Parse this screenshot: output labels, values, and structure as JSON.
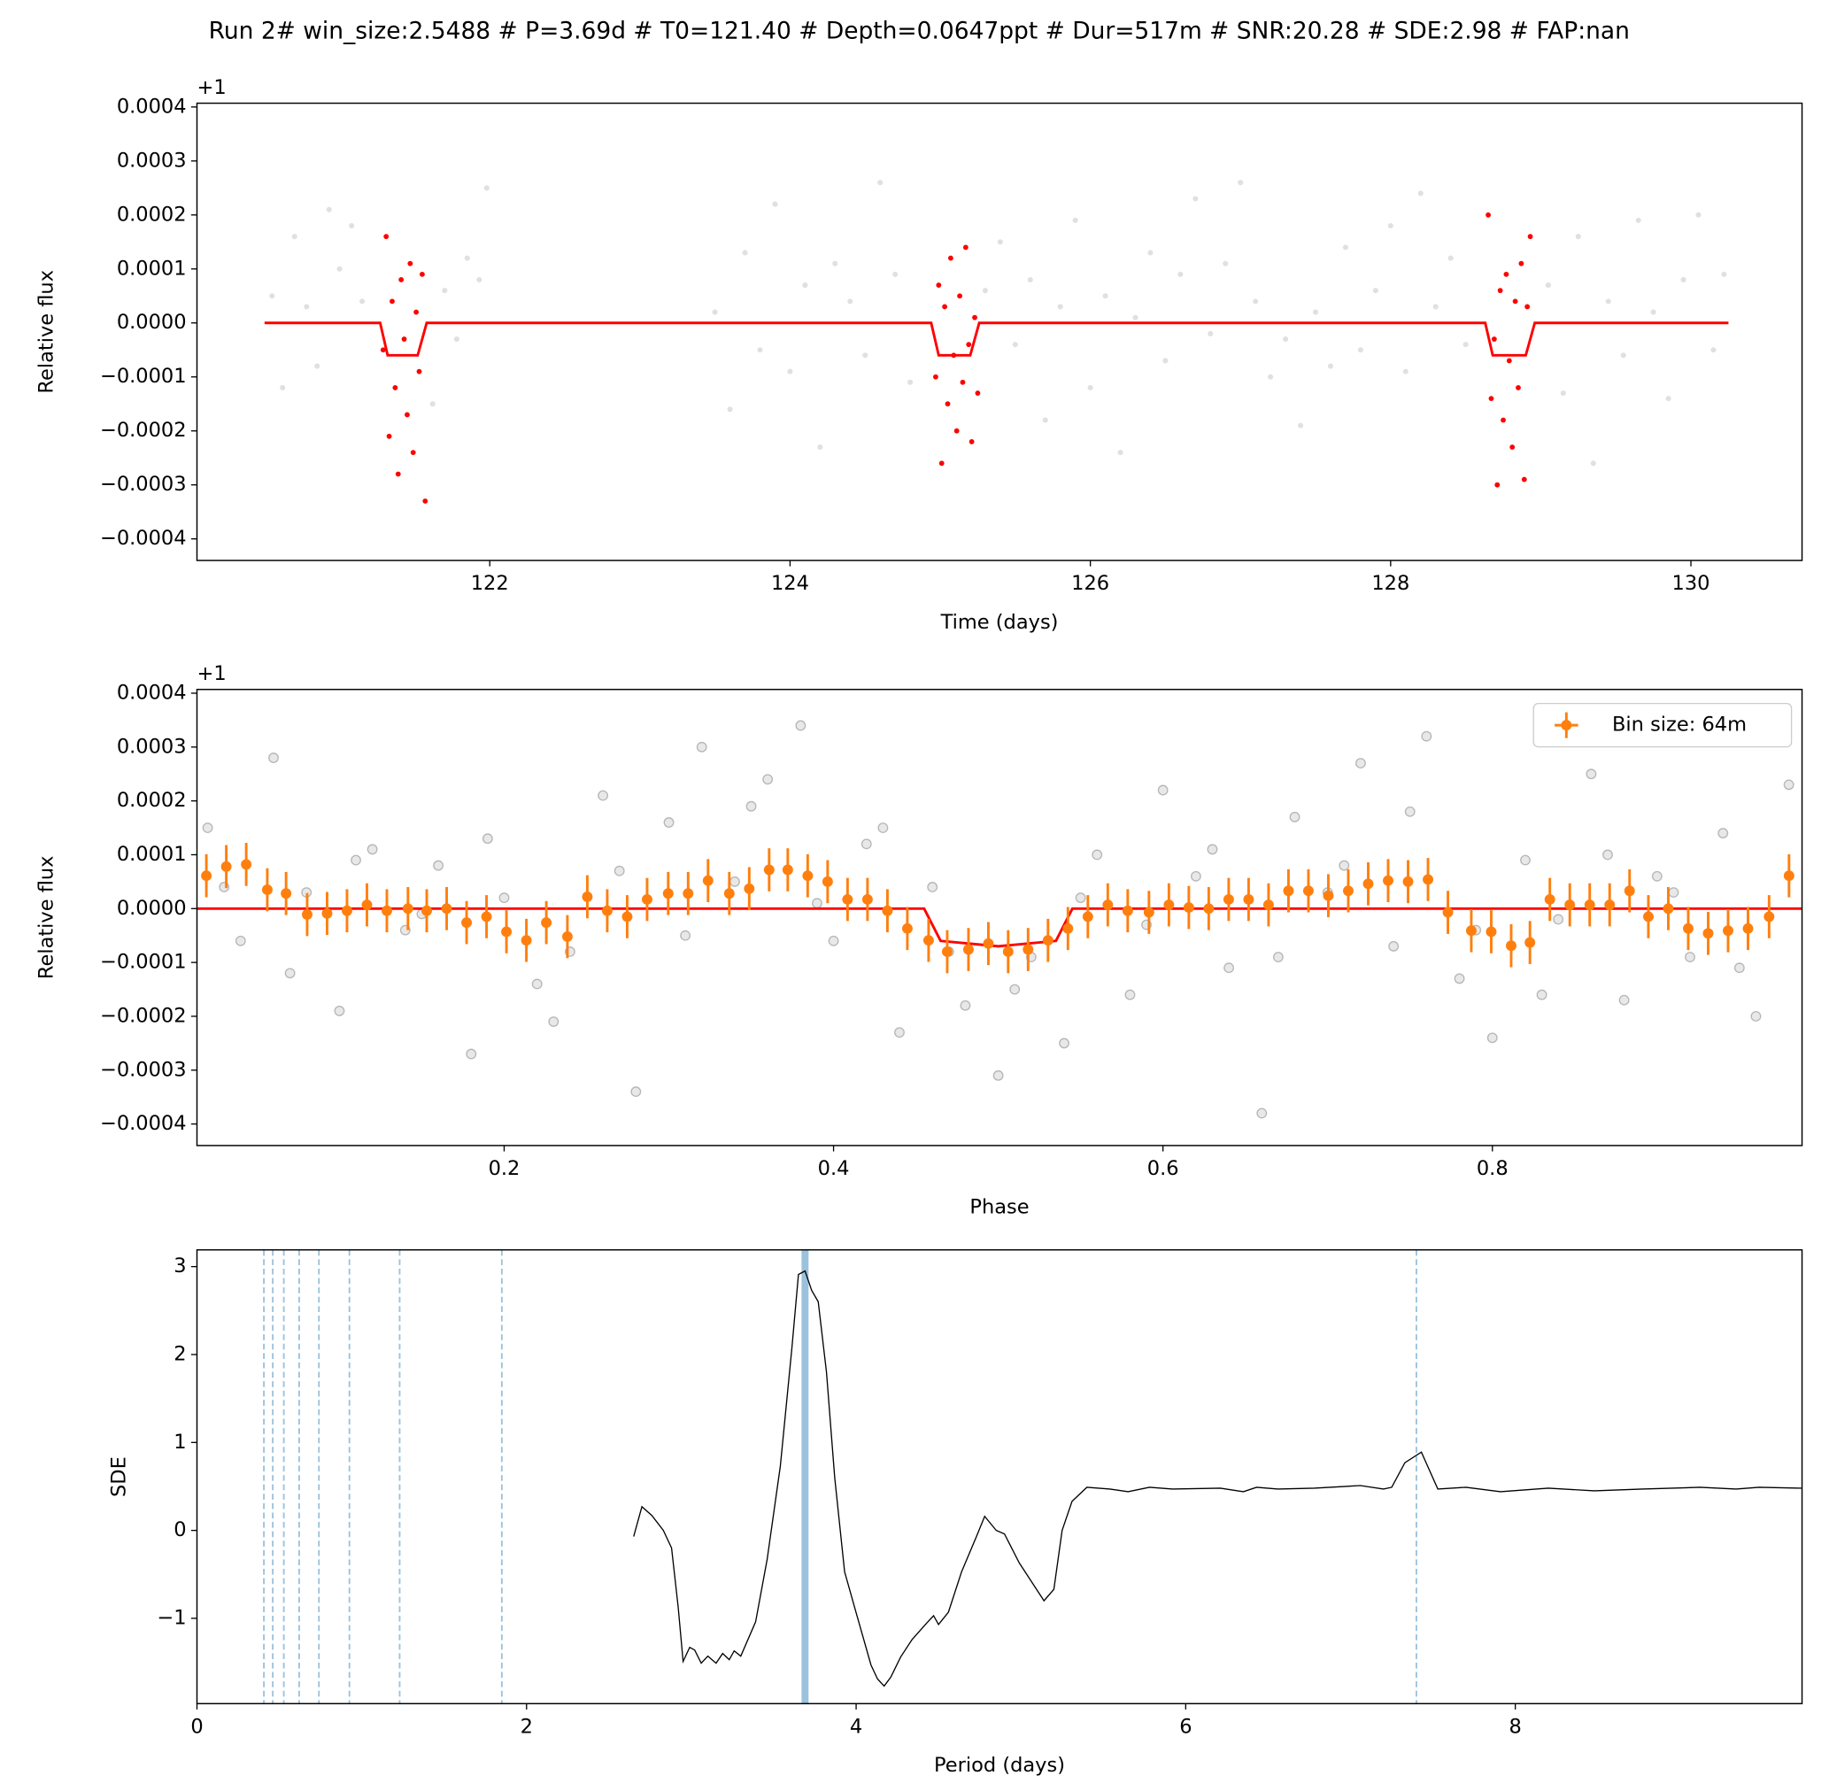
{
  "title": "Run 2# win_size:2.5488 # P=3.69d # T0=121.40 # Depth=0.0647ppt # Dur=517m # SNR:20.28 # SDE:2.98 # FAP:nan",
  "chart_data": [
    {
      "type": "scatter",
      "xlabel": "Time (days)",
      "ylabel": "Relative flux",
      "offset_label": "+1",
      "xlim": [
        120.05,
        130.74
      ],
      "ylim": [
        -0.00044,
        0.000407
      ],
      "xticks": [
        122,
        124,
        126,
        128,
        130
      ],
      "yticks": [
        {
          "value": -0.0004,
          "label": "−0.0004"
        },
        {
          "value": -0.0003,
          "label": "−0.0003"
        },
        {
          "value": -0.0002,
          "label": "−0.0002"
        },
        {
          "value": -0.0001,
          "label": "−0.0001"
        },
        {
          "value": 0,
          "label": "0.0000"
        },
        0.0001,
        0.0002,
        0.0003,
        0.0004
      ],
      "series": [
        {
          "kind": "points",
          "color": "#000000",
          "opacity": 0.12,
          "size": 2.3,
          "x": [
            120.55,
            120.62,
            120.7,
            120.78,
            120.85,
            120.93,
            121.0,
            121.08,
            121.15,
            121.62,
            121.7,
            121.78,
            121.85,
            121.93,
            121.98,
            123.5,
            123.6,
            123.7,
            123.8,
            123.9,
            124.0,
            124.1,
            124.2,
            124.3,
            124.4,
            124.5,
            124.6,
            124.7,
            124.8,
            125.3,
            125.4,
            125.5,
            125.6,
            125.7,
            125.8,
            125.9,
            126.0,
            126.1,
            126.2,
            126.3,
            126.4,
            126.5,
            126.6,
            126.7,
            126.8,
            126.9,
            127.0,
            127.1,
            127.2,
            127.3,
            127.4,
            127.5,
            127.6,
            127.7,
            127.8,
            127.9,
            128.0,
            128.1,
            128.2,
            128.3,
            128.4,
            128.5,
            129.05,
            129.15,
            129.25,
            129.35,
            129.45,
            129.55,
            129.65,
            129.75,
            129.85,
            129.95,
            130.05,
            130.15,
            130.22
          ],
          "values": [
            5e-05,
            -0.00012,
            0.00016,
            3e-05,
            -8e-05,
            0.00021,
            0.0001,
            0.00018,
            4e-05,
            -0.00015,
            6e-05,
            -3e-05,
            0.00012,
            8e-05,
            0.00025,
            2e-05,
            -0.00016,
            0.00013,
            -5e-05,
            0.00022,
            -9e-05,
            7e-05,
            -0.00023,
            0.00011,
            4e-05,
            -6e-05,
            0.00026,
            9e-05,
            -0.00011,
            6e-05,
            0.00015,
            -4e-05,
            8e-05,
            -0.00018,
            3e-05,
            0.00019,
            -0.00012,
            5e-05,
            -0.00024,
            1e-05,
            0.00013,
            -7e-05,
            9e-05,
            0.00023,
            -2e-05,
            0.00011,
            0.00026,
            4e-05,
            -0.0001,
            -3e-05,
            -0.00019,
            2e-05,
            -8e-05,
            0.00014,
            -5e-05,
            6e-05,
            0.00018,
            -9e-05,
            0.00024,
            3e-05,
            0.00012,
            -4e-05,
            7e-05,
            -0.00013,
            0.00016,
            -0.00026,
            4e-05,
            -6e-05,
            0.00019,
            2e-05,
            -0.00014,
            8e-05,
            0.0002,
            -5e-05,
            9e-05
          ]
        },
        {
          "kind": "points",
          "color": "#ff0000",
          "opacity": 1,
          "size": 2.2,
          "x": [
            121.29,
            121.31,
            121.33,
            121.35,
            121.37,
            121.39,
            121.41,
            121.43,
            121.45,
            121.47,
            121.49,
            121.51,
            121.53,
            121.55,
            121.57,
            124.97,
            124.99,
            125.01,
            125.03,
            125.05,
            125.07,
            125.09,
            125.11,
            125.13,
            125.15,
            125.17,
            125.19,
            125.21,
            125.23,
            125.25,
            128.65,
            128.67,
            128.69,
            128.71,
            128.73,
            128.75,
            128.77,
            128.79,
            128.81,
            128.83,
            128.85,
            128.87,
            128.89,
            128.91,
            128.93
          ],
          "values": [
            -5e-05,
            0.00016,
            -0.00021,
            4e-05,
            -0.00012,
            -0.00028,
            8e-05,
            -3e-05,
            -0.00017,
            0.00011,
            -0.00024,
            2e-05,
            -9e-05,
            9e-05,
            -0.00033,
            -0.0001,
            7e-05,
            -0.00026,
            3e-05,
            -0.00015,
            0.00012,
            -6e-05,
            -0.0002,
            5e-05,
            -0.00011,
            0.00014,
            -4e-05,
            -0.00022,
            1e-05,
            -0.00013,
            0.0002,
            -0.00014,
            -3e-05,
            -0.0003,
            6e-05,
            -0.00018,
            9e-05,
            -7e-05,
            -0.00023,
            4e-05,
            -0.00012,
            0.00011,
            -0.00029,
            3e-05,
            0.00016
          ]
        },
        {
          "kind": "line",
          "color": "#ff0000",
          "width": 2.2,
          "x": [
            120.5,
            121.27,
            121.32,
            121.52,
            121.58,
            124.94,
            124.99,
            125.2,
            125.26,
            128.63,
            128.68,
            128.9,
            128.96,
            130.25
          ],
          "values": [
            0,
            0,
            -6e-05,
            -6e-05,
            0,
            0,
            -6e-05,
            -6e-05,
            0,
            0,
            -6e-05,
            -6e-05,
            0,
            0
          ]
        }
      ]
    },
    {
      "type": "scatter",
      "xlabel": "Phase",
      "ylabel": "Relative flux",
      "offset_label": "+1",
      "legend": "upper right",
      "xlim": [
        0.0135,
        0.988
      ],
      "ylim": [
        -0.00044,
        0.000407
      ],
      "xticks": [
        0.2,
        0.4,
        0.6,
        0.8
      ],
      "yticks": [
        {
          "value": -0.0004,
          "label": "−0.0004"
        },
        {
          "value": -0.0003,
          "label": "−0.0003"
        },
        {
          "value": -0.0002,
          "label": "−0.0002"
        },
        {
          "value": -0.0001,
          "label": "−0.0001"
        },
        {
          "value": 0,
          "label": "0.0000"
        },
        0.0001,
        0.0002,
        0.0003,
        0.0004
      ],
      "series": [
        {
          "kind": "rings",
          "color": "#000000",
          "opacity": 0.18,
          "size": 4,
          "x": [
            0.02,
            0.04,
            0.06,
            0.08,
            0.1,
            0.12,
            0.14,
            0.16,
            0.18,
            0.2,
            0.22,
            0.24,
            0.26,
            0.28,
            0.3,
            0.32,
            0.34,
            0.36,
            0.38,
            0.4,
            0.42,
            0.44,
            0.46,
            0.48,
            0.5,
            0.52,
            0.54,
            0.56,
            0.58,
            0.6,
            0.62,
            0.64,
            0.66,
            0.68,
            0.7,
            0.72,
            0.74,
            0.76,
            0.78,
            0.8,
            0.82,
            0.84,
            0.86,
            0.88,
            0.9,
            0.92,
            0.94,
            0.96,
            0.98,
            0.03,
            0.07,
            0.11,
            0.15,
            0.19,
            0.23,
            0.27,
            0.31,
            0.35,
            0.39,
            0.43,
            0.47,
            0.51,
            0.55,
            0.59,
            0.63,
            0.67,
            0.71,
            0.75,
            0.79,
            0.83,
            0.87,
            0.91,
            0.95
          ],
          "values": [
            0.00015,
            -6e-05,
            0.00028,
            3e-05,
            -0.00019,
            0.00011,
            -4e-05,
            8e-05,
            -0.00027,
            2e-05,
            -0.00014,
            -8e-05,
            0.00021,
            -0.00034,
            0.00016,
            0.0003,
            5e-05,
            0.00024,
            0.00034,
            -6e-05,
            0.00012,
            -0.00023,
            4e-05,
            -0.00018,
            -0.00031,
            -9e-05,
            -0.00025,
            0.0001,
            -0.00016,
            0.00022,
            6e-05,
            -0.00011,
            -0.00038,
            0.00017,
            3e-05,
            0.00027,
            -7e-05,
            0.00032,
            -0.00013,
            -0.00024,
            9e-05,
            -2e-05,
            0.00025,
            -0.00017,
            6e-05,
            -9e-05,
            0.00014,
            -0.0002,
            0.00023,
            4e-05,
            -0.00012,
            9e-05,
            -1e-05,
            0.00013,
            -0.00021,
            7e-05,
            -5e-05,
            0.00019,
            1e-05,
            0.00015,
            -8e-05,
            -0.00015,
            2e-05,
            -3e-05,
            0.00011,
            -9e-05,
            8e-05,
            0.00018,
            -4e-05,
            -0.00016,
            0.0001,
            3e-05,
            -0.00011
          ]
        },
        {
          "kind": "line",
          "color": "#ff0000",
          "width": 2.2,
          "x": [
            0.0135,
            0.455,
            0.465,
            0.5,
            0.535,
            0.545,
            0.988
          ],
          "values": [
            0,
            0,
            -6e-05,
            -7e-05,
            -6e-05,
            0,
            0
          ]
        },
        {
          "kind": "errorbar",
          "name": "Bin size: 64m",
          "color": "#ff7f0e",
          "x": [
            0.0192,
            0.0313,
            0.0434,
            0.0562,
            0.0676,
            0.0804,
            0.0925,
            0.1046,
            0.1167,
            0.1288,
            0.1416,
            0.153,
            0.1651,
            0.1772,
            0.1893,
            0.2014,
            0.2135,
            0.2256,
            0.2384,
            0.2505,
            0.2626,
            0.2747,
            0.2868,
            0.2996,
            0.3117,
            0.3238,
            0.3367,
            0.3488,
            0.3609,
            0.3722,
            0.3843,
            0.3964,
            0.4085,
            0.4206,
            0.4327,
            0.4448,
            0.4577,
            0.469,
            0.4819,
            0.494,
            0.506,
            0.5181,
            0.5302,
            0.5423,
            0.5544,
            0.5665,
            0.5786,
            0.5915,
            0.6036,
            0.6157,
            0.6278,
            0.6399,
            0.652,
            0.6641,
            0.6762,
            0.6883,
            0.7004,
            0.7125,
            0.7246,
            0.7367,
            0.7488,
            0.7609,
            0.773,
            0.7872,
            0.7993,
            0.8114,
            0.8228,
            0.8349,
            0.847,
            0.8591,
            0.8712,
            0.8833,
            0.8947,
            0.9068,
            0.9189,
            0.931,
            0.9431,
            0.9552,
            0.968,
            0.9801
          ],
          "values": [
            6.1e-05,
            7.8e-05,
            8.2e-05,
            3.5e-05,
            2.8e-05,
            -1.1e-05,
            -9e-06,
            -4e-06,
            7e-06,
            -4e-06,
            0,
            -4e-06,
            0,
            -2.6e-05,
            -1.5e-05,
            -4.3e-05,
            -5.9e-05,
            -2.6e-05,
            -5.2e-05,
            2.2e-05,
            -4e-06,
            -1.5e-05,
            1.7e-05,
            2.8e-05,
            2.8e-05,
            5.2e-05,
            2.8e-05,
            3.7e-05,
            7.2e-05,
            7.2e-05,
            6.1e-05,
            5e-05,
            1.7e-05,
            1.7e-05,
            -4e-06,
            -3.7e-05,
            -5.9e-05,
            -8e-05,
            -7.6e-05,
            -6.5e-05,
            -8e-05,
            -7.6e-05,
            -5.9e-05,
            -3.7e-05,
            -1.5e-05,
            7e-06,
            -4e-06,
            -7e-06,
            7e-06,
            2e-06,
            0,
            1.7e-05,
            1.7e-05,
            7e-06,
            3.3e-05,
            3.3e-05,
            2.4e-05,
            3.3e-05,
            4.6e-05,
            5.2e-05,
            5e-05,
            5.4e-05,
            -7e-06,
            -4.1e-05,
            -4.3e-05,
            -6.9e-05,
            -6.3e-05,
            1.7e-05,
            7e-06,
            7e-06,
            7e-06,
            3.3e-05,
            -1.5e-05,
            0,
            -3.7e-05,
            -4.6e-05,
            -4.1e-05,
            -3.7e-05,
            -1.5e-05,
            6.1e-05
          ],
          "errors": [
            4e-05,
            4e-05,
            4e-05,
            4e-05,
            4e-05,
            4e-05,
            4e-05,
            4e-05,
            4e-05,
            4e-05,
            4e-05,
            4e-05,
            4e-05,
            4e-05,
            4e-05,
            4e-05,
            4e-05,
            4e-05,
            4e-05,
            4e-05,
            4e-05,
            4e-05,
            4e-05,
            4e-05,
            4e-05,
            4e-05,
            4e-05,
            4e-05,
            4e-05,
            4e-05,
            4e-05,
            4e-05,
            4e-05,
            4e-05,
            4e-05,
            4e-05,
            4e-05,
            4e-05,
            4e-05,
            4e-05,
            4e-05,
            4e-05,
            4e-05,
            4e-05,
            4e-05,
            4e-05,
            4e-05,
            4e-05,
            4e-05,
            4e-05,
            4e-05,
            4e-05,
            4e-05,
            4e-05,
            4e-05,
            4e-05,
            4e-05,
            4e-05,
            4e-05,
            4e-05,
            4e-05,
            4e-05,
            4e-05,
            4e-05,
            4e-05,
            4e-05,
            4e-05,
            4e-05,
            4e-05,
            4e-05,
            4e-05,
            4e-05,
            4e-05,
            4e-05,
            4e-05,
            4e-05,
            4e-05,
            4e-05,
            4e-05,
            4e-05
          ]
        }
      ]
    },
    {
      "type": "line",
      "xlabel": "Period (days)",
      "ylabel": "SDE",
      "xlim": [
        0,
        9.74
      ],
      "ylim": [
        -1.97,
        3.19
      ],
      "xticks": [
        0,
        2,
        4,
        6,
        8
      ],
      "yticks": [
        {
          "value": -1,
          "label": "−1"
        },
        0,
        1,
        2,
        3
      ],
      "harmonic_lines": {
        "color": "#1f77b4",
        "x": [
          0.406,
          0.46,
          0.527,
          0.62,
          0.74,
          0.925,
          1.23,
          1.85,
          7.4
        ]
      },
      "period_line": {
        "color": "#1f77b4",
        "x": 3.69
      },
      "series": [
        {
          "kind": "line",
          "color": "#000000",
          "width": 1,
          "x": [
            2.65,
            2.7,
            2.76,
            2.83,
            2.88,
            2.92,
            2.95,
            2.99,
            3.02,
            3.06,
            3.1,
            3.15,
            3.19,
            3.23,
            3.26,
            3.3,
            3.39,
            3.46,
            3.54,
            3.61,
            3.65,
            3.69,
            3.73,
            3.77,
            3.82,
            3.87,
            3.93,
            3.99,
            4.04,
            4.09,
            4.13,
            4.17,
            4.21,
            4.27,
            4.34,
            4.43,
            4.47,
            4.5,
            4.56,
            4.64,
            4.73,
            4.78,
            4.85,
            4.9,
            4.99,
            5.14,
            5.2,
            5.25,
            5.31,
            5.4,
            5.54,
            5.65,
            5.78,
            5.92,
            6.21,
            6.35,
            6.43,
            6.56,
            6.78,
            7.06,
            7.2,
            7.25,
            7.33,
            7.43,
            7.53,
            7.7,
            7.91,
            8.2,
            8.48,
            8.77,
            9.12,
            9.34,
            9.48,
            9.74
          ],
          "values": [
            -0.07,
            0.27,
            0.17,
            0.0,
            -0.2,
            -0.87,
            -1.49,
            -1.33,
            -1.36,
            -1.51,
            -1.43,
            -1.51,
            -1.4,
            -1.47,
            -1.37,
            -1.43,
            -1.04,
            -0.33,
            0.73,
            2.07,
            2.91,
            2.95,
            2.73,
            2.6,
            1.8,
            0.6,
            -0.47,
            -0.87,
            -1.2,
            -1.53,
            -1.69,
            -1.77,
            -1.67,
            -1.44,
            -1.24,
            -1.05,
            -0.97,
            -1.07,
            -0.93,
            -0.47,
            -0.07,
            0.16,
            0.0,
            -0.04,
            -0.37,
            -0.8,
            -0.67,
            0.0,
            0.33,
            0.49,
            0.47,
            0.44,
            0.49,
            0.47,
            0.48,
            0.44,
            0.49,
            0.47,
            0.48,
            0.51,
            0.47,
            0.49,
            0.77,
            0.89,
            0.47,
            0.49,
            0.44,
            0.48,
            0.45,
            0.47,
            0.49,
            0.47,
            0.49,
            0.48
          ]
        }
      ]
    }
  ]
}
